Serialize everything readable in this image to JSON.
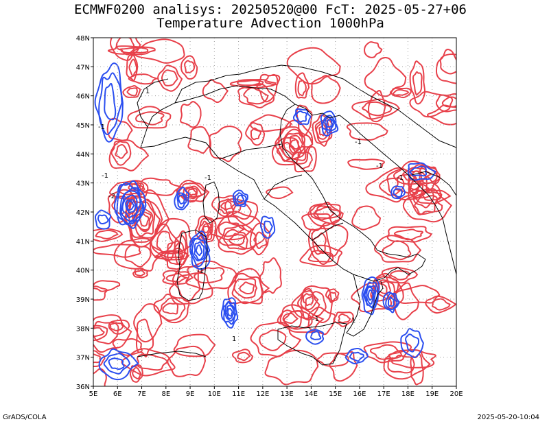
{
  "title": {
    "line1": "ECMWF0200 analisys: 20250520@00 FcT: 2025-05-27+06",
    "line2": "Temperature Advection 1000hPa"
  },
  "map": {
    "lon_range": [
      5,
      20
    ],
    "lat_range": [
      36,
      48
    ],
    "lon_ticks": [
      "5E",
      "6E",
      "7E",
      "8E",
      "9E",
      "10E",
      "11E",
      "12E",
      "13E",
      "14E",
      "15E",
      "16E",
      "17E",
      "18E",
      "19E",
      "20E"
    ],
    "lat_ticks": [
      "36N",
      "37N",
      "38N",
      "39N",
      "40N",
      "41N",
      "42N",
      "43N",
      "44N",
      "45N",
      "46N",
      "47N",
      "48N"
    ],
    "grid": "dotted",
    "colors": {
      "positive_contour": "#e8404a",
      "negative_contour": "#2a4ef0",
      "coastline": "#000000",
      "grid": "#9a9a9a"
    },
    "contour_labels": [
      "1",
      "-1",
      "-2",
      "-1",
      "-1",
      "1",
      "-1",
      "-1",
      "-1",
      "-1",
      "1",
      "-1"
    ]
  },
  "footer": {
    "left": "GrADS/COLA",
    "right": "2025-05-20-10:04"
  }
}
